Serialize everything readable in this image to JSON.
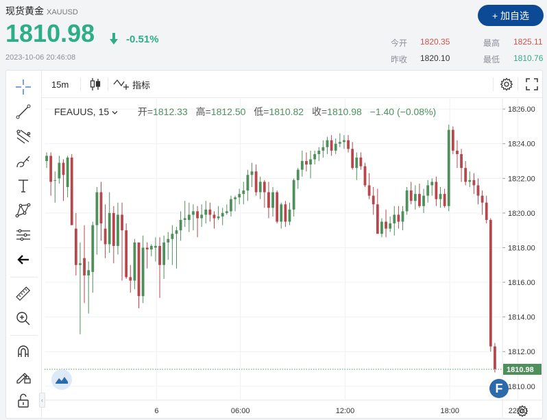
{
  "header": {
    "title": "现货黄金",
    "symbol": "XAUUSD",
    "price": "1810.98",
    "change_pct": "-0.51%",
    "timestamp": "2023-10-06 20:46:08",
    "add_button": "+ 加自选"
  },
  "stats": {
    "open_label": "今开",
    "open": "1820.35",
    "high_label": "最高",
    "high": "1825.11",
    "prev_close_label": "昨收",
    "prev_close": "1820.10",
    "low_label": "最低",
    "low": "1810.76"
  },
  "toolbar": {
    "interval": "15m",
    "indicators_label": "指标"
  },
  "legend": {
    "symbol": "FEAUUS, 15",
    "open_label": "开=",
    "open": "1812.33",
    "high_label": "高=",
    "high": "1812.50",
    "low_label": "低=",
    "low": "1810.82",
    "close_label": "收=",
    "close": "1810.98",
    "change": "−1.40 (−0.08%)"
  },
  "colors": {
    "up": "#4e8f5c",
    "down": "#b5474d",
    "accent": "#0c4a96",
    "price_green": "#2eae86"
  },
  "chart_data": {
    "type": "candlestick",
    "interval": "15m",
    "ylim": [
      1809.2,
      1826.6
    ],
    "y_ticks": [
      "1810.00",
      "1812.00",
      "1814.00",
      "1816.00",
      "1818.00",
      "1820.00",
      "1822.00",
      "1824.00",
      "1826.00"
    ],
    "x_ticks": [
      "6",
      "06:00",
      "12:00",
      "18:00",
      "22:00"
    ],
    "last_price_label": "1810.98",
    "last_price": 1810.98,
    "candles": [
      [
        1823.0,
        1823.5,
        1822.6,
        1823.3
      ],
      [
        1823.3,
        1823.5,
        1821.0,
        1821.8
      ],
      [
        1821.9,
        1822.4,
        1820.6,
        1821.9
      ],
      [
        1822.0,
        1823.3,
        1821.7,
        1822.9
      ],
      [
        1822.9,
        1823.1,
        1820.7,
        1822.2
      ],
      [
        1821.5,
        1823.3,
        1820.9,
        1823.2
      ],
      [
        1823.2,
        1823.4,
        1819.3,
        1819.3
      ],
      [
        1819.1,
        1820.0,
        1816.4,
        1817.0
      ],
      [
        1817.0,
        1818.3,
        1813.0,
        1817.1
      ],
      [
        1817.4,
        1819.3,
        1814.8,
        1816.4
      ],
      [
        1816.4,
        1817.2,
        1814.2,
        1816.7
      ],
      [
        1816.6,
        1819.5,
        1815.4,
        1819.3
      ],
      [
        1819.3,
        1821.5,
        1817.6,
        1821.2
      ],
      [
        1821.2,
        1821.8,
        1818.4,
        1819.4
      ],
      [
        1819.1,
        1820.5,
        1817.4,
        1818.2
      ],
      [
        1818.2,
        1821.2,
        1817.7,
        1820.0
      ],
      [
        1820.0,
        1820.4,
        1817.1,
        1818.1
      ],
      [
        1818.1,
        1820.6,
        1817.6,
        1819.9
      ],
      [
        1819.9,
        1820.6,
        1816.1,
        1819.0
      ],
      [
        1819.0,
        1819.4,
        1816.2,
        1816.3
      ],
      [
        1816.3,
        1817.0,
        1815.4,
        1816.1
      ],
      [
        1816.1,
        1818.5,
        1815.6,
        1818.3
      ],
      [
        1818.3,
        1818.3,
        1814.5,
        1815.2
      ],
      [
        1815.2,
        1818.7,
        1814.8,
        1818.0
      ],
      [
        1818.0,
        1818.3,
        1816.8,
        1817.9
      ],
      [
        1817.9,
        1818.2,
        1817.5,
        1818.1
      ],
      [
        1818.0,
        1818.6,
        1817.2,
        1818.1
      ],
      [
        1818.1,
        1818.6,
        1815.1,
        1817.0
      ],
      [
        1817.0,
        1818.7,
        1816.2,
        1818.3
      ],
      [
        1818.3,
        1818.9,
        1817.3,
        1818.5
      ],
      [
        1818.5,
        1819.3,
        1817.0,
        1818.8
      ],
      [
        1818.8,
        1819.2,
        1816.8,
        1819.0
      ],
      [
        1819.0,
        1820.1,
        1818.4,
        1819.6
      ],
      [
        1819.6,
        1820.7,
        1819.2,
        1819.7
      ],
      [
        1819.6,
        1820.6,
        1818.9,
        1819.9
      ],
      [
        1819.9,
        1820.5,
        1819.0,
        1820.1
      ],
      [
        1820.1,
        1820.4,
        1818.6,
        1819.7
      ],
      [
        1819.7,
        1820.5,
        1819.2,
        1819.9
      ],
      [
        1819.9,
        1820.7,
        1819.4,
        1820.2
      ],
      [
        1820.2,
        1820.6,
        1819.5,
        1819.9
      ],
      [
        1819.9,
        1820.1,
        1819.1,
        1819.7
      ],
      [
        1819.7,
        1820.4,
        1819.6,
        1819.8
      ],
      [
        1819.8,
        1820.3,
        1819.3,
        1820.0
      ],
      [
        1820.0,
        1820.5,
        1819.9,
        1820.1
      ],
      [
        1820.1,
        1821.0,
        1819.8,
        1820.8
      ],
      [
        1820.8,
        1821.0,
        1820.1,
        1820.9
      ],
      [
        1820.9,
        1821.4,
        1820.5,
        1821.1
      ],
      [
        1821.1,
        1821.8,
        1820.5,
        1821.3
      ],
      [
        1821.3,
        1822.5,
        1820.7,
        1822.2
      ],
      [
        1822.2,
        1822.9,
        1821.5,
        1822.4
      ],
      [
        1822.4,
        1822.8,
        1821.0,
        1821.2
      ],
      [
        1821.2,
        1822.1,
        1820.8,
        1821.8
      ],
      [
        1821.8,
        1821.9,
        1820.3,
        1821.2
      ],
      [
        1821.2,
        1821.8,
        1819.7,
        1820.3
      ],
      [
        1820.3,
        1821.5,
        1819.8,
        1821.2
      ],
      [
        1821.2,
        1821.3,
        1819.4,
        1819.5
      ],
      [
        1819.5,
        1820.6,
        1819.1,
        1820.5
      ],
      [
        1820.5,
        1820.7,
        1819.2,
        1819.5
      ],
      [
        1819.5,
        1820.6,
        1819.3,
        1820.2
      ],
      [
        1820.2,
        1822.0,
        1819.8,
        1821.9
      ],
      [
        1821.9,
        1822.6,
        1821.4,
        1822.5
      ],
      [
        1822.5,
        1823.6,
        1822.1,
        1823.0
      ],
      [
        1823.0,
        1823.5,
        1822.4,
        1822.8
      ],
      [
        1822.8,
        1823.6,
        1822.0,
        1823.1
      ],
      [
        1823.1,
        1823.6,
        1822.8,
        1823.4
      ],
      [
        1823.4,
        1823.8,
        1823.0,
        1823.6
      ],
      [
        1823.6,
        1824.2,
        1823.2,
        1823.8
      ],
      [
        1823.8,
        1824.4,
        1823.4,
        1824.2
      ],
      [
        1824.2,
        1824.5,
        1823.3,
        1823.6
      ],
      [
        1823.6,
        1824.3,
        1823.4,
        1824.0
      ],
      [
        1824.0,
        1824.6,
        1823.8,
        1824.1
      ],
      [
        1824.1,
        1824.5,
        1823.7,
        1824.2
      ],
      [
        1824.2,
        1824.5,
        1823.5,
        1823.7
      ],
      [
        1823.7,
        1824.1,
        1822.5,
        1822.6
      ],
      [
        1822.6,
        1823.5,
        1821.9,
        1823.2
      ],
      [
        1823.2,
        1823.5,
        1822.5,
        1822.7
      ],
      [
        1822.7,
        1822.9,
        1821.5,
        1821.6
      ],
      [
        1821.6,
        1822.3,
        1820.8,
        1821.0
      ],
      [
        1821.0,
        1821.5,
        1819.9,
        1820.5
      ],
      [
        1820.5,
        1821.4,
        1818.8,
        1818.8
      ],
      [
        1818.8,
        1819.7,
        1818.6,
        1819.5
      ],
      [
        1819.5,
        1820.2,
        1818.6,
        1819.1
      ],
      [
        1819.1,
        1819.8,
        1818.9,
        1819.4
      ],
      [
        1819.4,
        1820.4,
        1818.7,
        1819.9
      ],
      [
        1819.9,
        1820.4,
        1819.1,
        1819.5
      ],
      [
        1819.5,
        1820.4,
        1819.0,
        1820.1
      ],
      [
        1820.1,
        1821.5,
        1819.9,
        1821.3
      ],
      [
        1821.3,
        1821.8,
        1820.5,
        1820.7
      ],
      [
        1820.7,
        1821.6,
        1820.2,
        1821.1
      ],
      [
        1821.1,
        1821.7,
        1820.3,
        1820.4
      ],
      [
        1820.4,
        1821.4,
        1820.0,
        1821.0
      ],
      [
        1821.0,
        1821.9,
        1820.6,
        1821.6
      ],
      [
        1821.6,
        1822.0,
        1821.0,
        1821.8
      ],
      [
        1821.8,
        1822.1,
        1820.4,
        1820.8
      ],
      [
        1820.8,
        1821.5,
        1820.3,
        1821.1
      ],
      [
        1821.1,
        1821.4,
        1820.3,
        1820.4
      ],
      [
        1820.4,
        1825.1,
        1820.1,
        1824.8
      ],
      [
        1824.8,
        1825.0,
        1823.4,
        1823.6
      ],
      [
        1823.6,
        1824.2,
        1822.6,
        1823.4
      ],
      [
        1823.4,
        1823.7,
        1821.8,
        1822.6
      ],
      [
        1822.6,
        1823.0,
        1821.6,
        1821.8
      ],
      [
        1821.8,
        1822.4,
        1821.5,
        1821.9
      ],
      [
        1821.9,
        1822.3,
        1821.1,
        1821.6
      ],
      [
        1821.6,
        1822.0,
        1820.5,
        1821.0
      ],
      [
        1821.0,
        1821.3,
        1819.9,
        1820.6
      ],
      [
        1820.6,
        1821.0,
        1819.4,
        1819.6
      ],
      [
        1819.6,
        1819.7,
        1812.0,
        1812.3
      ],
      [
        1812.3,
        1812.5,
        1810.8,
        1811.0
      ]
    ]
  }
}
